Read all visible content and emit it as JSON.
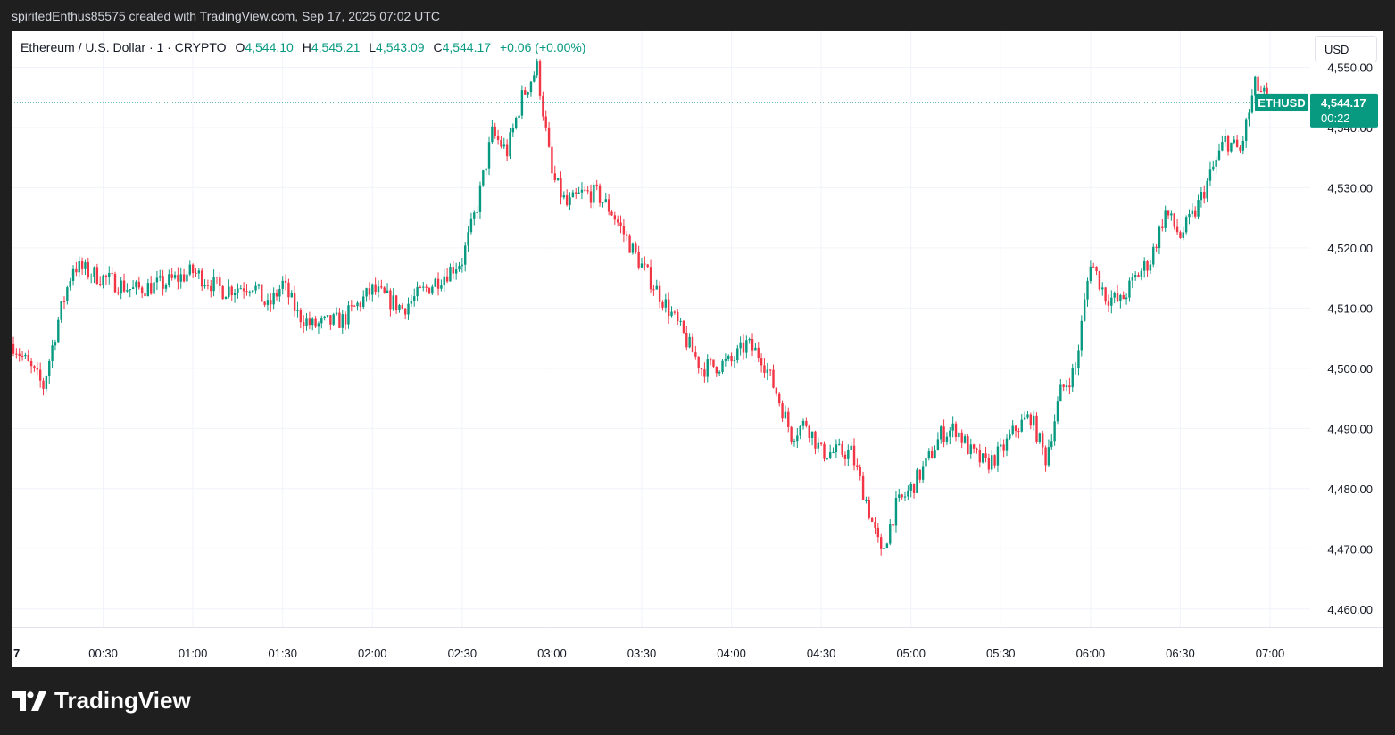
{
  "header": {
    "caption": "spiritedEnthus85575 created with TradingView.com, Sep 17, 2025 07:02 UTC"
  },
  "legend": {
    "symbol": "Ethereum / U.S. Dollar · 1 · CRYPTO",
    "o_label": "O",
    "o": "4,544.10",
    "h_label": "H",
    "h": "4,545.21",
    "l_label": "L",
    "l": "4,543.09",
    "c_label": "C",
    "c": "4,544.17",
    "change": "+0.06 (+0.00%)"
  },
  "currency": "USD",
  "price_tag": {
    "symbol": "ETHUSD",
    "price": "4,544.17",
    "countdown": "00:22"
  },
  "brand": {
    "name": "TradingView"
  },
  "colors": {
    "up": "#089981",
    "down": "#f23645",
    "grid": "#f0f3fa",
    "text": "#131722"
  },
  "chart_data": {
    "type": "candlestick",
    "grid": true,
    "current_price": 4544.17,
    "ylim": [
      4457,
      4556
    ],
    "y_ticks": [
      "4,460.00",
      "4,470.00",
      "4,480.00",
      "4,490.00",
      "4,500.00",
      "4,510.00",
      "4,520.00",
      "4,530.00",
      "4,540.00",
      "4,550.00"
    ],
    "x_ticks": [
      "7",
      "00:30",
      "01:00",
      "01:30",
      "02:00",
      "02:30",
      "03:00",
      "03:30",
      "04:00",
      "04:30",
      "05:00",
      "05:30",
      "06:00",
      "06:30",
      "07:00"
    ],
    "series": [
      {
        "t": "00:00",
        "close": 4504
      },
      {
        "t": "00:10",
        "close": 4497
      },
      {
        "t": "00:15",
        "close": 4508
      },
      {
        "t": "00:20",
        "close": 4517
      },
      {
        "t": "00:30",
        "close": 4515
      },
      {
        "t": "00:40",
        "close": 4513
      },
      {
        "t": "00:50",
        "close": 4514
      },
      {
        "t": "01:00",
        "close": 4516
      },
      {
        "t": "01:10",
        "close": 4513
      },
      {
        "t": "01:20",
        "close": 4514
      },
      {
        "t": "01:25",
        "close": 4510
      },
      {
        "t": "01:30",
        "close": 4514
      },
      {
        "t": "01:35",
        "close": 4509
      },
      {
        "t": "01:40",
        "close": 4507
      },
      {
        "t": "01:50",
        "close": 4508
      },
      {
        "t": "02:00",
        "close": 4513
      },
      {
        "t": "02:10",
        "close": 4510
      },
      {
        "t": "02:20",
        "close": 4514
      },
      {
        "t": "02:30",
        "close": 4518
      },
      {
        "t": "02:35",
        "close": 4527
      },
      {
        "t": "02:40",
        "close": 4539
      },
      {
        "t": "02:45",
        "close": 4536
      },
      {
        "t": "02:50",
        "close": 4545
      },
      {
        "t": "02:55",
        "close": 4550
      },
      {
        "t": "03:00",
        "close": 4532
      },
      {
        "t": "03:05",
        "close": 4527
      },
      {
        "t": "03:10",
        "close": 4529
      },
      {
        "t": "03:15",
        "close": 4529
      },
      {
        "t": "03:20",
        "close": 4526
      },
      {
        "t": "03:30",
        "close": 4517
      },
      {
        "t": "03:40",
        "close": 4509
      },
      {
        "t": "03:50",
        "close": 4500
      },
      {
        "t": "04:00",
        "close": 4501
      },
      {
        "t": "04:05",
        "close": 4504
      },
      {
        "t": "04:10",
        "close": 4502
      },
      {
        "t": "04:15",
        "close": 4496
      },
      {
        "t": "04:20",
        "close": 4489
      },
      {
        "t": "04:25",
        "close": 4491
      },
      {
        "t": "04:30",
        "close": 4486
      },
      {
        "t": "04:40",
        "close": 4486
      },
      {
        "t": "04:45",
        "close": 4478
      },
      {
        "t": "04:50",
        "close": 4469
      },
      {
        "t": "04:55",
        "close": 4477
      },
      {
        "t": "05:00",
        "close": 4480
      },
      {
        "t": "05:05",
        "close": 4484
      },
      {
        "t": "05:10",
        "close": 4489
      },
      {
        "t": "05:15",
        "close": 4490
      },
      {
        "t": "05:20",
        "close": 4486
      },
      {
        "t": "05:25",
        "close": 4484
      },
      {
        "t": "05:30",
        "close": 4486
      },
      {
        "t": "05:35",
        "close": 4490
      },
      {
        "t": "05:40",
        "close": 4492
      },
      {
        "t": "05:45",
        "close": 4485
      },
      {
        "t": "05:50",
        "close": 4496
      },
      {
        "t": "05:55",
        "close": 4500
      },
      {
        "t": "06:00",
        "close": 4518
      },
      {
        "t": "06:05",
        "close": 4512
      },
      {
        "t": "06:10",
        "close": 4511
      },
      {
        "t": "06:15",
        "close": 4515
      },
      {
        "t": "06:20",
        "close": 4518
      },
      {
        "t": "06:25",
        "close": 4526
      },
      {
        "t": "06:30",
        "close": 4522
      },
      {
        "t": "06:35",
        "close": 4526
      },
      {
        "t": "06:40",
        "close": 4532
      },
      {
        "t": "06:45",
        "close": 4538
      },
      {
        "t": "06:50",
        "close": 4536
      },
      {
        "t": "06:55",
        "close": 4547
      },
      {
        "t": "07:00",
        "close": 4544.17
      }
    ]
  }
}
